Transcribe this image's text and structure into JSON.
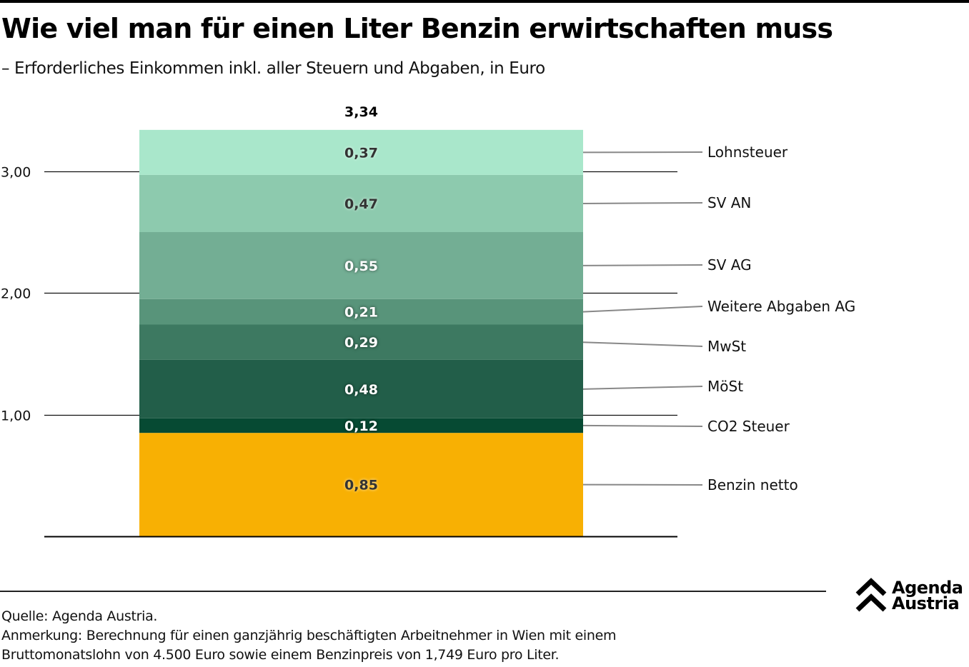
{
  "header": {
    "title": "Wie viel man für einen Liter Benzin erwirtschaften muss",
    "subtitle": "– Erforderliches Einkommen inkl. aller Steuern und Abgaben, in Euro"
  },
  "footer": {
    "source": "Quelle: Agenda Austria.",
    "note_line1": "Anmerkung: Berechnung für einen ganzjährig beschäftigten Arbeitnehmer in Wien mit einem",
    "note_line2": "Bruttomonatslohn von 4.500 Euro sowie einem Benzinpreis von 1,749 Euro pro Liter."
  },
  "logo": {
    "line1": "Agenda",
    "line2": "Austria"
  },
  "chart_data": {
    "type": "bar",
    "stacked": true,
    "title": "Wie viel man für einen Liter Benzin erwirtschaften muss",
    "subtitle": "– Erforderliches Einkommen inkl. aller Steuern und Abgaben, in Euro",
    "xlabel": "",
    "ylabel": "",
    "ylim": [
      0,
      3.34
    ],
    "yticks": [
      1.0,
      2.0,
      3.0
    ],
    "ytick_labels": [
      "1,00",
      "2,00",
      "3,00"
    ],
    "grid": true,
    "legend": "right (direct labels with leader lines)",
    "total": 3.34,
    "total_label": "3,34",
    "series": [
      {
        "name": "Benzin netto",
        "value": 0.85,
        "label": "0,85",
        "color": "#F8B003",
        "text_color": "#333333"
      },
      {
        "name": "CO2 Steuer",
        "value": 0.12,
        "label": "0,12",
        "color": "#064A33",
        "text_color": "#ffffff"
      },
      {
        "name": "MöSt",
        "value": 0.48,
        "label": "0,48",
        "color": "#225E49",
        "text_color": "#ffffff"
      },
      {
        "name": "MwSt",
        "value": 0.29,
        "label": "0,29",
        "color": "#3D7961",
        "text_color": "#ffffff"
      },
      {
        "name": "Weitere Abgaben AG",
        "value": 0.21,
        "label": "0,21",
        "color": "#58947A",
        "text_color": "#ffffff"
      },
      {
        "name": "SV AG",
        "value": 0.55,
        "label": "0,55",
        "color": "#73AE94",
        "text_color": "#ffffff"
      },
      {
        "name": "SV AN",
        "value": 0.47,
        "label": "0,47",
        "color": "#8DCAAE",
        "text_color": "#333333"
      },
      {
        "name": "Lohnsteuer",
        "value": 0.37,
        "label": "0,37",
        "color": "#A9E7CB",
        "text_color": "#333333"
      }
    ]
  }
}
